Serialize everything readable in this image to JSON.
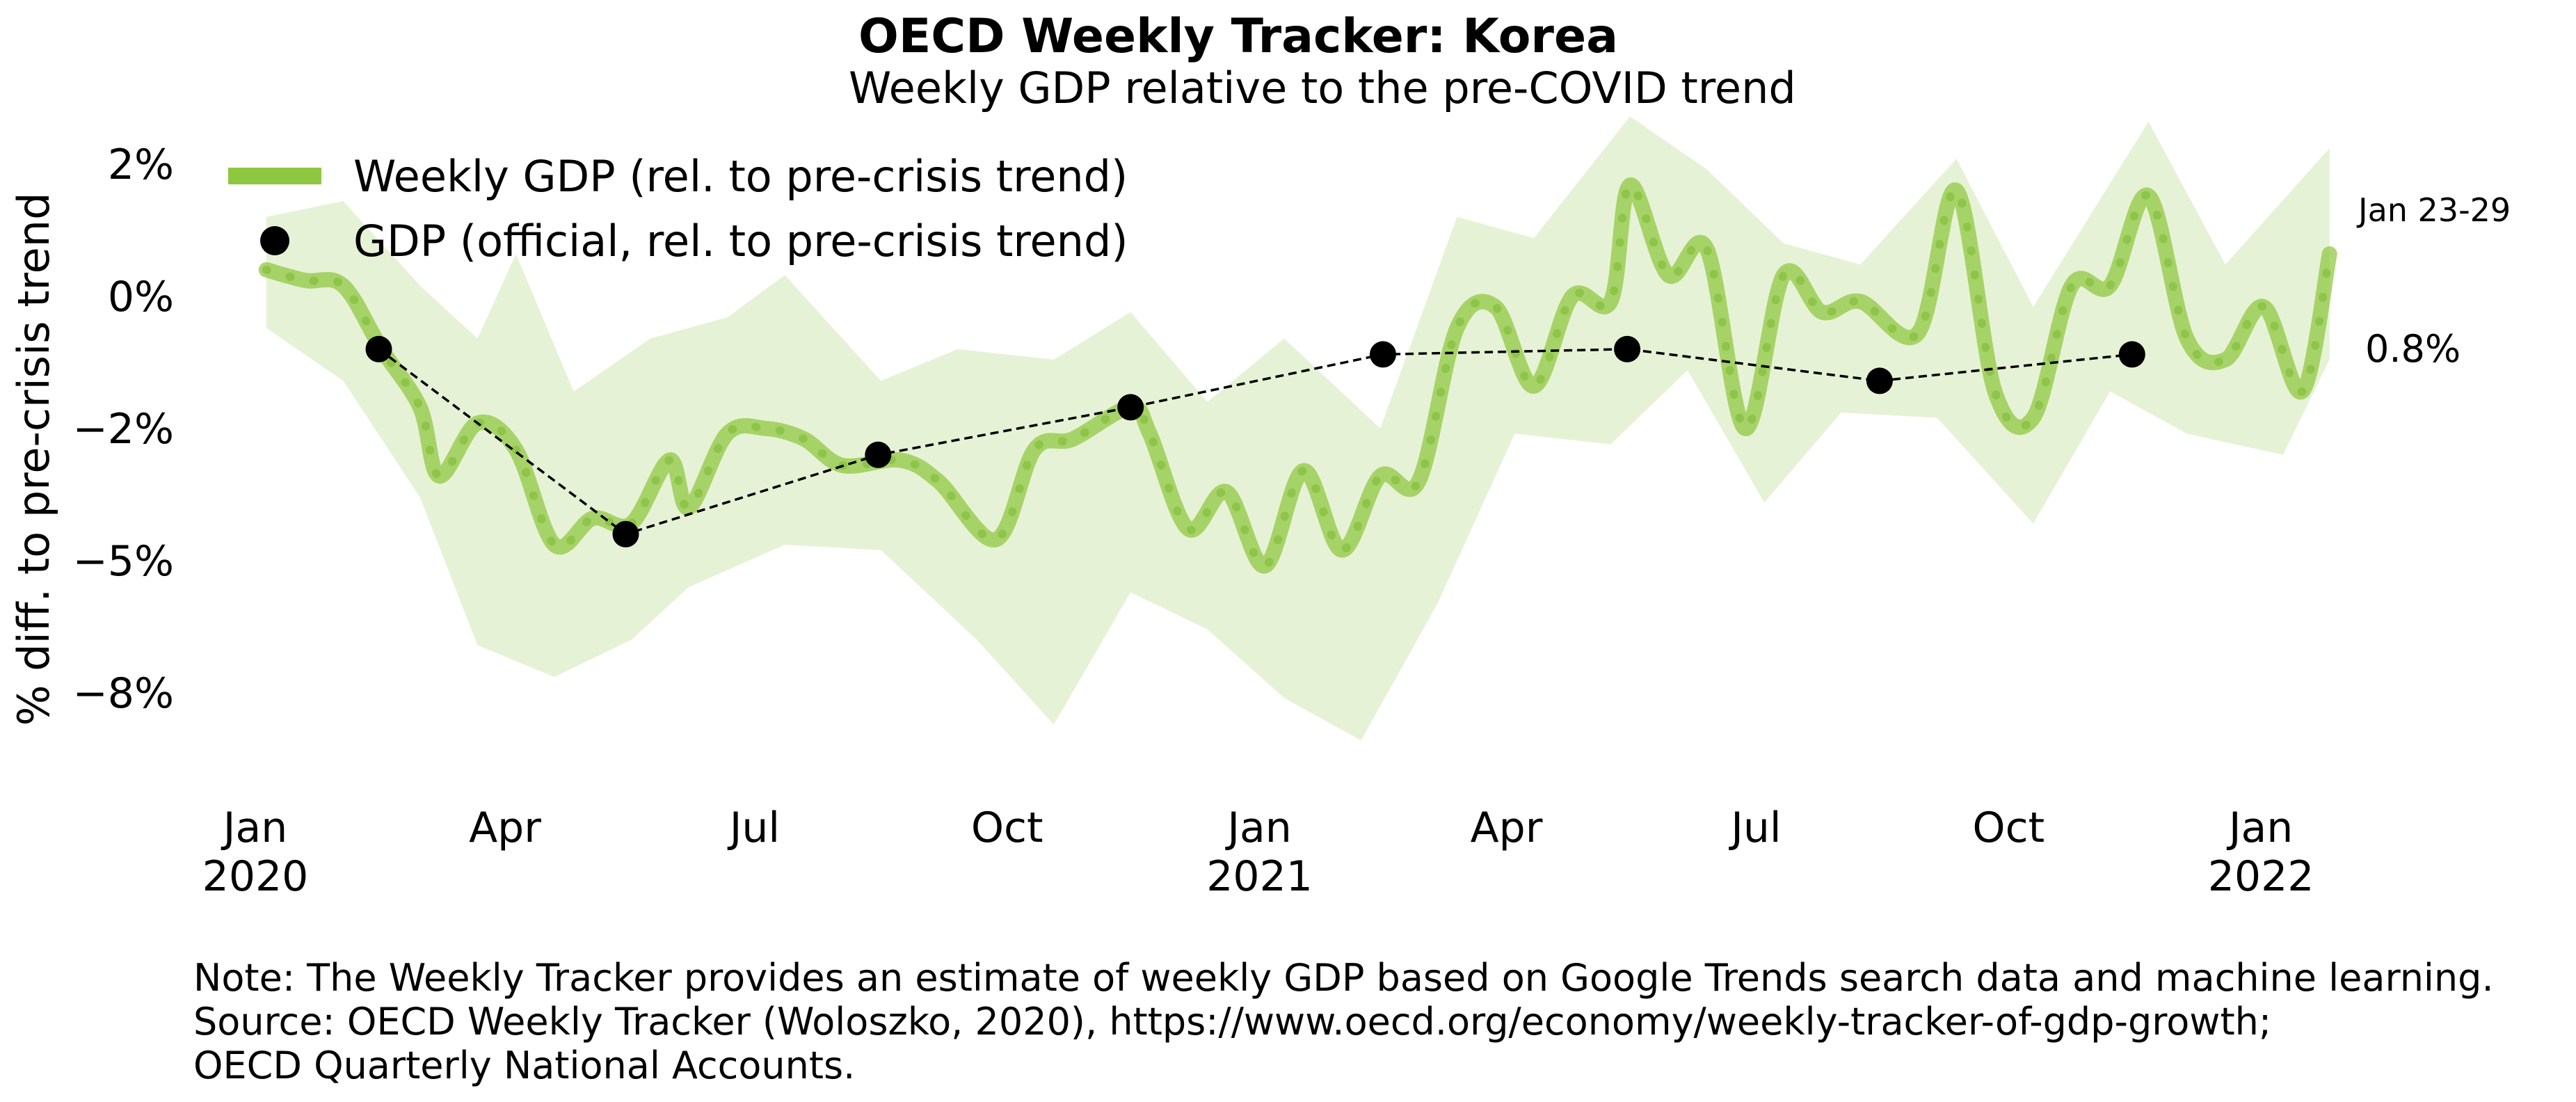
{
  "chart_data": {
    "type": "line",
    "title": "OECD Weekly Tracker: Korea",
    "subtitle": "Weekly GDP relative to the pre-COVID trend",
    "ylabel": "% diff. to pre-crisis trend",
    "xlabel": "",
    "ylim": [
      -9.2,
      3.3
    ],
    "xlim": [
      "2019-12-15",
      "2022-02-08"
    ],
    "grid": false,
    "legend_position": "top-left",
    "y_ticks": [
      {
        "value": 2.5,
        "label": "2%"
      },
      {
        "value": 0,
        "label": "0%"
      },
      {
        "value": -2.5,
        "label": "−2%"
      },
      {
        "value": -5,
        "label": "−5%"
      },
      {
        "value": -7.5,
        "label": "−8%"
      }
    ],
    "x_ticks": [
      {
        "date": "2020-01-01",
        "label": "Jan",
        "year": "2020"
      },
      {
        "date": "2020-04-01",
        "label": "Apr",
        "year": ""
      },
      {
        "date": "2020-07-01",
        "label": "Jul",
        "year": ""
      },
      {
        "date": "2020-10-01",
        "label": "Oct",
        "year": ""
      },
      {
        "date": "2021-01-01",
        "label": "Jan",
        "year": "2021"
      },
      {
        "date": "2021-04-01",
        "label": "Apr",
        "year": ""
      },
      {
        "date": "2021-07-01",
        "label": "Jul",
        "year": ""
      },
      {
        "date": "2021-10-01",
        "label": "Oct",
        "year": ""
      },
      {
        "date": "2022-01-01",
        "label": "Jan",
        "year": "2022"
      }
    ],
    "series": [
      {
        "name": "Weekly GDP (rel. to pre-crisis trend)",
        "kind": "weekly_line",
        "color": "#8dc63f",
        "points": [
          {
            "x": "2020-01-05",
            "y": 0.5
          },
          {
            "x": "2020-01-19",
            "y": 0.3
          },
          {
            "x": "2020-02-02",
            "y": 0.2
          },
          {
            "x": "2020-02-16",
            "y": -1.0
          },
          {
            "x": "2020-03-01",
            "y": -2.1
          },
          {
            "x": "2020-03-08",
            "y": -3.4
          },
          {
            "x": "2020-03-22",
            "y": -2.4
          },
          {
            "x": "2020-04-05",
            "y": -2.9
          },
          {
            "x": "2020-04-19",
            "y": -4.7
          },
          {
            "x": "2020-05-03",
            "y": -4.2
          },
          {
            "x": "2020-05-17",
            "y": -4.3
          },
          {
            "x": "2020-05-31",
            "y": -3.1
          },
          {
            "x": "2020-06-07",
            "y": -4.0
          },
          {
            "x": "2020-06-21",
            "y": -2.6
          },
          {
            "x": "2020-07-05",
            "y": -2.5
          },
          {
            "x": "2020-07-19",
            "y": -2.7
          },
          {
            "x": "2020-08-02",
            "y": -3.2
          },
          {
            "x": "2020-08-23",
            "y": -3.1
          },
          {
            "x": "2020-09-06",
            "y": -3.5
          },
          {
            "x": "2020-09-27",
            "y": -4.6
          },
          {
            "x": "2020-10-11",
            "y": -2.9
          },
          {
            "x": "2020-10-25",
            "y": -2.7
          },
          {
            "x": "2020-11-15",
            "y": -2.1
          },
          {
            "x": "2020-11-22",
            "y": -2.6
          },
          {
            "x": "2020-12-06",
            "y": -4.4
          },
          {
            "x": "2020-12-20",
            "y": -3.7
          },
          {
            "x": "2021-01-03",
            "y": -5.1
          },
          {
            "x": "2021-01-17",
            "y": -3.3
          },
          {
            "x": "2021-01-31",
            "y": -4.8
          },
          {
            "x": "2021-02-14",
            "y": -3.4
          },
          {
            "x": "2021-02-28",
            "y": -3.5
          },
          {
            "x": "2021-03-14",
            "y": -0.6
          },
          {
            "x": "2021-03-28",
            "y": -0.2
          },
          {
            "x": "2021-04-11",
            "y": -1.7
          },
          {
            "x": "2021-04-25",
            "y": 0.0
          },
          {
            "x": "2021-05-09",
            "y": -0.1
          },
          {
            "x": "2021-05-16",
            "y": 2.1
          },
          {
            "x": "2021-05-30",
            "y": 0.4
          },
          {
            "x": "2021-06-13",
            "y": 0.9
          },
          {
            "x": "2021-06-27",
            "y": -2.5
          },
          {
            "x": "2021-07-11",
            "y": 0.4
          },
          {
            "x": "2021-07-25",
            "y": -0.3
          },
          {
            "x": "2021-08-08",
            "y": -0.1
          },
          {
            "x": "2021-08-29",
            "y": -0.7
          },
          {
            "x": "2021-09-12",
            "y": 2.0
          },
          {
            "x": "2021-09-26",
            "y": -1.8
          },
          {
            "x": "2021-10-10",
            "y": -2.3
          },
          {
            "x": "2021-10-24",
            "y": 0.2
          },
          {
            "x": "2021-11-07",
            "y": 0.2
          },
          {
            "x": "2021-11-21",
            "y": 1.9
          },
          {
            "x": "2021-12-05",
            "y": -0.8
          },
          {
            "x": "2021-12-19",
            "y": -1.2
          },
          {
            "x": "2022-01-02",
            "y": -0.2
          },
          {
            "x": "2022-01-16",
            "y": -1.8
          },
          {
            "x": "2022-01-26",
            "y": 0.8
          }
        ],
        "band_upper": [
          {
            "x": "2020-01-05",
            "y": 1.5
          },
          {
            "x": "2020-02-02",
            "y": 1.8
          },
          {
            "x": "2020-03-01",
            "y": 0.2
          },
          {
            "x": "2020-03-22",
            "y": -0.8
          },
          {
            "x": "2020-04-05",
            "y": 0.8
          },
          {
            "x": "2020-04-26",
            "y": -1.8
          },
          {
            "x": "2020-05-24",
            "y": -0.8
          },
          {
            "x": "2020-06-21",
            "y": -0.4
          },
          {
            "x": "2020-07-12",
            "y": 0.4
          },
          {
            "x": "2020-08-16",
            "y": -1.6
          },
          {
            "x": "2020-09-13",
            "y": -1.0
          },
          {
            "x": "2020-10-18",
            "y": -1.2
          },
          {
            "x": "2020-11-15",
            "y": -0.3
          },
          {
            "x": "2020-12-13",
            "y": -2.0
          },
          {
            "x": "2021-01-10",
            "y": -0.8
          },
          {
            "x": "2021-02-14",
            "y": -2.5
          },
          {
            "x": "2021-03-14",
            "y": 1.5
          },
          {
            "x": "2021-04-11",
            "y": 1.1
          },
          {
            "x": "2021-05-16",
            "y": 3.4
          },
          {
            "x": "2021-06-13",
            "y": 2.4
          },
          {
            "x": "2021-07-11",
            "y": 1.0
          },
          {
            "x": "2021-08-08",
            "y": 0.6
          },
          {
            "x": "2021-09-12",
            "y": 2.6
          },
          {
            "x": "2021-10-10",
            "y": -0.2
          },
          {
            "x": "2021-11-21",
            "y": 3.3
          },
          {
            "x": "2021-12-19",
            "y": 0.6
          },
          {
            "x": "2022-01-26",
            "y": 2.8
          }
        ],
        "band_lower": [
          {
            "x": "2020-01-05",
            "y": -0.6
          },
          {
            "x": "2020-02-02",
            "y": -1.6
          },
          {
            "x": "2020-03-01",
            "y": -3.8
          },
          {
            "x": "2020-03-22",
            "y": -6.6
          },
          {
            "x": "2020-04-19",
            "y": -7.2
          },
          {
            "x": "2020-05-17",
            "y": -6.5
          },
          {
            "x": "2020-06-07",
            "y": -5.5
          },
          {
            "x": "2020-07-12",
            "y": -4.7
          },
          {
            "x": "2020-08-16",
            "y": -4.8
          },
          {
            "x": "2020-09-20",
            "y": -6.5
          },
          {
            "x": "2020-10-18",
            "y": -8.1
          },
          {
            "x": "2020-11-15",
            "y": -5.6
          },
          {
            "x": "2020-12-13",
            "y": -6.3
          },
          {
            "x": "2021-01-10",
            "y": -7.6
          },
          {
            "x": "2021-02-07",
            "y": -8.4
          },
          {
            "x": "2021-03-07",
            "y": -5.8
          },
          {
            "x": "2021-04-04",
            "y": -2.6
          },
          {
            "x": "2021-05-09",
            "y": -2.8
          },
          {
            "x": "2021-06-06",
            "y": -1.4
          },
          {
            "x": "2021-07-04",
            "y": -3.9
          },
          {
            "x": "2021-08-01",
            "y": -2.2
          },
          {
            "x": "2021-09-05",
            "y": -2.3
          },
          {
            "x": "2021-10-10",
            "y": -4.3
          },
          {
            "x": "2021-11-07",
            "y": -1.8
          },
          {
            "x": "2021-12-05",
            "y": -2.6
          },
          {
            "x": "2022-01-09",
            "y": -3.0
          },
          {
            "x": "2022-01-26",
            "y": -1.2
          }
        ]
      },
      {
        "name": "GDP (official, rel. to pre-crisis trend)",
        "kind": "official_points",
        "color": "#000000",
        "points": [
          {
            "x": "2020-02-15",
            "y": -1.0
          },
          {
            "x": "2020-05-15",
            "y": -4.5
          },
          {
            "x": "2020-08-15",
            "y": -3.0
          },
          {
            "x": "2020-11-15",
            "y": -2.1
          },
          {
            "x": "2021-02-15",
            "y": -1.1
          },
          {
            "x": "2021-05-15",
            "y": -1.0
          },
          {
            "x": "2021-08-15",
            "y": -1.6
          },
          {
            "x": "2021-11-15",
            "y": -1.1
          }
        ]
      }
    ],
    "annotations": {
      "last_week_label": "Jan 23-29",
      "last_value_label": "0.8%"
    }
  },
  "note": {
    "line1": "Note: The Weekly Tracker provides an estimate of weekly GDP based on Google Trends search data and machine learning.",
    "line2": "Source: OECD Weekly Tracker (Woloszko, 2020), https://www.oecd.org/economy/weekly-tracker-of-gdp-growth;",
    "line3": "OECD Quarterly National Accounts."
  }
}
